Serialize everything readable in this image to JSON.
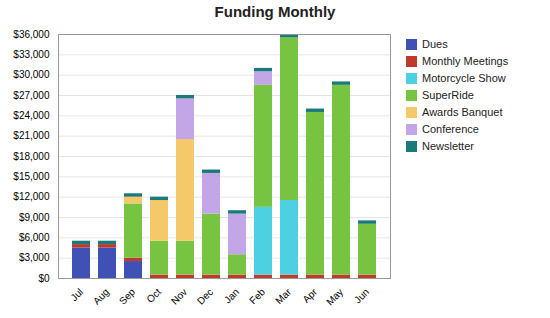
{
  "chart_data": {
    "type": "bar",
    "stacked": true,
    "title": "Funding Monthly",
    "categories": [
      "Jul",
      "Aug",
      "Sep",
      "Oct",
      "Nov",
      "Dec",
      "Jan",
      "Feb",
      "Mar",
      "Apr",
      "May",
      "Jun"
    ],
    "series": [
      {
        "name": "Dues",
        "color": "#3F51B5",
        "values": [
          4500,
          4500,
          2500,
          0,
          0,
          0,
          0,
          0,
          0,
          0,
          0,
          0
        ]
      },
      {
        "name": "Monthly Meetings",
        "color": "#C0392B",
        "values": [
          500,
          500,
          500,
          500,
          500,
          500,
          500,
          500,
          500,
          500,
          500,
          500
        ]
      },
      {
        "name": "Motorcycle Show",
        "color": "#4DD0E1",
        "values": [
          0,
          0,
          0,
          0,
          0,
          0,
          0,
          10000,
          11000,
          0,
          0,
          0
        ]
      },
      {
        "name": "SuperRide",
        "color": "#76C442",
        "values": [
          0,
          0,
          8000,
          5000,
          5000,
          9000,
          3000,
          18000,
          24000,
          24000,
          28000,
          7500
        ]
      },
      {
        "name": "Awards Banquet",
        "color": "#F5C96A",
        "values": [
          0,
          0,
          1000,
          6000,
          15000,
          0,
          0,
          0,
          0,
          0,
          0,
          0
        ]
      },
      {
        "name": "Conference",
        "color": "#C3A6E8",
        "values": [
          0,
          0,
          0,
          0,
          6000,
          6000,
          6000,
          2000,
          0,
          0,
          0,
          0
        ]
      },
      {
        "name": "Newsletter",
        "color": "#1A7A7A",
        "values": [
          500,
          500,
          500,
          500,
          500,
          500,
          500,
          500,
          500,
          500,
          500,
          500
        ]
      }
    ],
    "ylim": [
      0,
      36000
    ],
    "yticks": [
      {
        "value": 0,
        "label": "$0"
      },
      {
        "value": 3000,
        "label": "$3,000"
      },
      {
        "value": 6000,
        "label": "$6,000"
      },
      {
        "value": 9000,
        "label": "$9,000"
      },
      {
        "value": 12000,
        "label": "$12,000"
      },
      {
        "value": 15000,
        "label": "$15,000"
      },
      {
        "value": 18000,
        "label": "$18,000"
      },
      {
        "value": 21000,
        "label": "$21,000"
      },
      {
        "value": 24000,
        "label": "$24,000"
      },
      {
        "value": 27000,
        "label": "$27,000"
      },
      {
        "value": 30000,
        "label": "$30,000"
      },
      {
        "value": 33000,
        "label": "$33,000"
      },
      {
        "value": 36000,
        "label": "$36,000"
      }
    ],
    "grid": true,
    "legend": "right"
  }
}
